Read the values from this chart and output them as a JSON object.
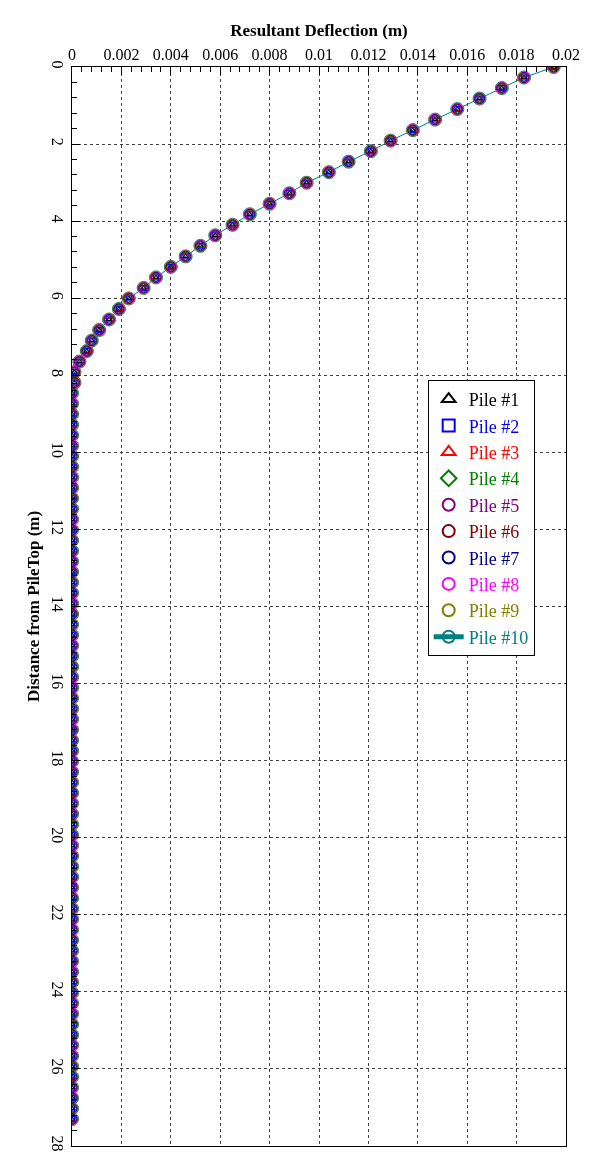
{
  "chart_data": {
    "type": "line",
    "orientation": "horizontal",
    "xlabel": "Resultant Deflection (m)",
    "ylabel": "Distance from PileTop (m)",
    "x": [
      0,
      0.273,
      0.546,
      0.819,
      1.092,
      1.365,
      1.638,
      1.911,
      2.184,
      2.457,
      2.73,
      3.003,
      3.276,
      3.549,
      3.822,
      4.095,
      4.368,
      4.641,
      4.914,
      5.187,
      5.46,
      5.733,
      6.006,
      6.279,
      6.552,
      6.825,
      7.098,
      7.371,
      7.644,
      7.917,
      8.19,
      8.463,
      8.736,
      9.009,
      9.282,
      9.555,
      9.828,
      10.101,
      10.374,
      10.647,
      10.92,
      11.193,
      11.466,
      11.739,
      12.012,
      12.285,
      12.558,
      12.831,
      13.104,
      13.377,
      13.65,
      13.923,
      14.196,
      14.469,
      14.742,
      15.015,
      15.288,
      15.561,
      15.834,
      16.107,
      16.38,
      16.653,
      16.926,
      17.199,
      17.472,
      17.745,
      18.018,
      18.291,
      18.564,
      18.837,
      19.11,
      19.383,
      19.656,
      19.929,
      20.202,
      20.475,
      20.748,
      21.021,
      21.294,
      21.567,
      21.84,
      22.113,
      22.386,
      22.659,
      22.932,
      23.205,
      23.478,
      23.751,
      24.024,
      24.297,
      24.57,
      24.843,
      25.116,
      25.389,
      25.662,
      25.935,
      26.208,
      26.481,
      26.754,
      27.027,
      27.3
    ],
    "xlim": [
      0,
      0.02
    ],
    "xticks": [
      0,
      0.002,
      0.004,
      0.006,
      0.008,
      0.01,
      0.012,
      0.014,
      0.016,
      0.018,
      0.02
    ],
    "ylim": [
      28,
      0
    ],
    "yticks": [
      0,
      2,
      4,
      6,
      8,
      10,
      12,
      14,
      16,
      18,
      20,
      22,
      24,
      26,
      28
    ],
    "grid": true,
    "legend": "right",
    "line_style": "solid",
    "series": [
      {
        "name": "Pile #1",
        "color": "#000000",
        "type": "scatter",
        "marker": "triangle",
        "values": [
          0.0195,
          0.0183,
          0.0174,
          0.0165,
          0.0156,
          0.0147,
          0.0138,
          0.0129,
          0.0121,
          0.0112,
          0.0104,
          0.0095,
          0.0088,
          0.008,
          0.0072,
          0.0065,
          0.0058,
          0.0052,
          0.0046,
          0.004,
          0.0034,
          0.0029,
          0.0023,
          0.0019,
          0.0015,
          0.0011,
          0.0008,
          0.0006,
          0.0003,
          0.0001,
          0.0001,
          0,
          0,
          0,
          0,
          0,
          0,
          0,
          0,
          0,
          0,
          0,
          0,
          0,
          0,
          0,
          0,
          0,
          0,
          0,
          0,
          0,
          0,
          0,
          0,
          0,
          0,
          0,
          0,
          0,
          0,
          0,
          0,
          0,
          0,
          0,
          0,
          0,
          0,
          0,
          0,
          0,
          0,
          0,
          0,
          0,
          0,
          0,
          0,
          0,
          0,
          0,
          0,
          0,
          0,
          0,
          0,
          0,
          0,
          0,
          0,
          0,
          0,
          0,
          0,
          0,
          0,
          0,
          0,
          0,
          0
        ]
      },
      {
        "name": "Pile #2",
        "color": "#0000ff",
        "type": "scatter",
        "marker": "square",
        "values": [
          0.0195,
          0.0183,
          0.0174,
          0.0165,
          0.0156,
          0.0147,
          0.0138,
          0.0129,
          0.0121,
          0.0112,
          0.0104,
          0.0095,
          0.0088,
          0.008,
          0.0072,
          0.0065,
          0.0058,
          0.0052,
          0.0046,
          0.004,
          0.0034,
          0.0029,
          0.0023,
          0.0019,
          0.0015,
          0.0011,
          0.0008,
          0.0006,
          0.0003,
          0.0001,
          0.0001,
          0,
          0,
          0,
          0,
          0,
          0,
          0,
          0,
          0,
          0,
          0,
          0,
          0,
          0,
          0,
          0,
          0,
          0,
          0,
          0,
          0,
          0,
          0,
          0,
          0,
          0,
          0,
          0,
          0,
          0,
          0,
          0,
          0,
          0,
          0,
          0,
          0,
          0,
          0,
          0,
          0,
          0,
          0,
          0,
          0,
          0,
          0,
          0,
          0,
          0,
          0,
          0,
          0,
          0,
          0,
          0,
          0,
          0,
          0,
          0,
          0,
          0,
          0,
          0,
          0,
          0,
          0,
          0,
          0,
          0
        ]
      },
      {
        "name": "Pile #3",
        "color": "#ff0000",
        "type": "scatter",
        "marker": "triangle",
        "values": [
          0.0195,
          0.0183,
          0.0174,
          0.0165,
          0.0156,
          0.0147,
          0.0138,
          0.0129,
          0.0121,
          0.0112,
          0.0104,
          0.0095,
          0.0088,
          0.008,
          0.0072,
          0.0065,
          0.0058,
          0.0052,
          0.0046,
          0.004,
          0.0034,
          0.0029,
          0.0023,
          0.0019,
          0.0015,
          0.0011,
          0.0008,
          0.0006,
          0.0003,
          0.0001,
          0.0001,
          0,
          0,
          0,
          0,
          0,
          0,
          0,
          0,
          0,
          0,
          0,
          0,
          0,
          0,
          0,
          0,
          0,
          0,
          0,
          0,
          0,
          0,
          0,
          0,
          0,
          0,
          0,
          0,
          0,
          0,
          0,
          0,
          0,
          0,
          0,
          0,
          0,
          0,
          0,
          0,
          0,
          0,
          0,
          0,
          0,
          0,
          0,
          0,
          0,
          0,
          0,
          0,
          0,
          0,
          0,
          0,
          0,
          0,
          0,
          0,
          0,
          0,
          0,
          0,
          0,
          0,
          0,
          0,
          0,
          0
        ]
      },
      {
        "name": "Pile #4",
        "color": "#008000",
        "type": "scatter",
        "marker": "diamond",
        "values": [
          0.0195,
          0.0183,
          0.0174,
          0.0165,
          0.0156,
          0.0147,
          0.0138,
          0.0129,
          0.0121,
          0.0112,
          0.0104,
          0.0095,
          0.0088,
          0.008,
          0.0072,
          0.0065,
          0.0058,
          0.0052,
          0.0046,
          0.004,
          0.0034,
          0.0029,
          0.0023,
          0.0019,
          0.0015,
          0.0011,
          0.0008,
          0.0006,
          0.0003,
          0.0001,
          0.0001,
          0,
          0,
          0,
          0,
          0,
          0,
          0,
          0,
          0,
          0,
          0,
          0,
          0,
          0,
          0,
          0,
          0,
          0,
          0,
          0,
          0,
          0,
          0,
          0,
          0,
          0,
          0,
          0,
          0,
          0,
          0,
          0,
          0,
          0,
          0,
          0,
          0,
          0,
          0,
          0,
          0,
          0,
          0,
          0,
          0,
          0,
          0,
          0,
          0,
          0,
          0,
          0,
          0,
          0,
          0,
          0,
          0,
          0,
          0,
          0,
          0,
          0,
          0,
          0,
          0,
          0,
          0,
          0,
          0,
          0
        ]
      },
      {
        "name": "Pile #5",
        "color": "#800080",
        "type": "scatter",
        "marker": "circle",
        "values": [
          0.0195,
          0.0183,
          0.0174,
          0.0165,
          0.0156,
          0.0147,
          0.0138,
          0.0129,
          0.0121,
          0.0112,
          0.0104,
          0.0095,
          0.0088,
          0.008,
          0.0072,
          0.0065,
          0.0058,
          0.0052,
          0.0046,
          0.004,
          0.0034,
          0.0029,
          0.0023,
          0.0019,
          0.0015,
          0.0011,
          0.0008,
          0.0006,
          0.0003,
          0.0001,
          0.0001,
          0,
          0,
          0,
          0,
          0,
          0,
          0,
          0,
          0,
          0,
          0,
          0,
          0,
          0,
          0,
          0,
          0,
          0,
          0,
          0,
          0,
          0,
          0,
          0,
          0,
          0,
          0,
          0,
          0,
          0,
          0,
          0,
          0,
          0,
          0,
          0,
          0,
          0,
          0,
          0,
          0,
          0,
          0,
          0,
          0,
          0,
          0,
          0,
          0,
          0,
          0,
          0,
          0,
          0,
          0,
          0,
          0,
          0,
          0,
          0,
          0,
          0,
          0,
          0,
          0,
          0,
          0,
          0,
          0,
          0
        ]
      },
      {
        "name": "Pile #6",
        "color": "#800000",
        "type": "scatter",
        "marker": "circle",
        "values": [
          0.0195,
          0.0183,
          0.0174,
          0.0165,
          0.0156,
          0.0147,
          0.0138,
          0.0129,
          0.0121,
          0.0112,
          0.0104,
          0.0095,
          0.0088,
          0.008,
          0.0072,
          0.0065,
          0.0058,
          0.0052,
          0.0046,
          0.004,
          0.0034,
          0.0029,
          0.0023,
          0.0019,
          0.0015,
          0.0011,
          0.0008,
          0.0006,
          0.0003,
          0.0001,
          0.0001,
          0,
          0,
          0,
          0,
          0,
          0,
          0,
          0,
          0,
          0,
          0,
          0,
          0,
          0,
          0,
          0,
          0,
          0,
          0,
          0,
          0,
          0,
          0,
          0,
          0,
          0,
          0,
          0,
          0,
          0,
          0,
          0,
          0,
          0,
          0,
          0,
          0,
          0,
          0,
          0,
          0,
          0,
          0,
          0,
          0,
          0,
          0,
          0,
          0,
          0,
          0,
          0,
          0,
          0,
          0,
          0,
          0,
          0,
          0,
          0,
          0,
          0,
          0,
          0,
          0,
          0,
          0,
          0,
          0,
          0
        ]
      },
      {
        "name": "Pile #7",
        "color": "#000080",
        "type": "scatter",
        "marker": "circle",
        "values": [
          0.0195,
          0.0183,
          0.0174,
          0.0165,
          0.0156,
          0.0147,
          0.0138,
          0.0129,
          0.0121,
          0.0112,
          0.0104,
          0.0095,
          0.0088,
          0.008,
          0.0072,
          0.0065,
          0.0058,
          0.0052,
          0.0046,
          0.004,
          0.0034,
          0.0029,
          0.0023,
          0.0019,
          0.0015,
          0.0011,
          0.0008,
          0.0006,
          0.0003,
          0.0001,
          0.0001,
          0,
          0,
          0,
          0,
          0,
          0,
          0,
          0,
          0,
          0,
          0,
          0,
          0,
          0,
          0,
          0,
          0,
          0,
          0,
          0,
          0,
          0,
          0,
          0,
          0,
          0,
          0,
          0,
          0,
          0,
          0,
          0,
          0,
          0,
          0,
          0,
          0,
          0,
          0,
          0,
          0,
          0,
          0,
          0,
          0,
          0,
          0,
          0,
          0,
          0,
          0,
          0,
          0,
          0,
          0,
          0,
          0,
          0,
          0,
          0,
          0,
          0,
          0,
          0,
          0,
          0,
          0,
          0,
          0,
          0
        ]
      },
      {
        "name": "Pile #8",
        "color": "#ff00ff",
        "type": "scatter",
        "marker": "circle",
        "values": [
          0.0195,
          0.0183,
          0.0174,
          0.0165,
          0.0156,
          0.0147,
          0.0138,
          0.0129,
          0.0121,
          0.0112,
          0.0104,
          0.0095,
          0.0088,
          0.008,
          0.0072,
          0.0065,
          0.0058,
          0.0052,
          0.0046,
          0.004,
          0.0034,
          0.0029,
          0.0023,
          0.0019,
          0.0015,
          0.0011,
          0.0008,
          0.0006,
          0.0003,
          0.0001,
          0.0001,
          0,
          0,
          0,
          0,
          0,
          0,
          0,
          0,
          0,
          0,
          0,
          0,
          0,
          0,
          0,
          0,
          0,
          0,
          0,
          0,
          0,
          0,
          0,
          0,
          0,
          0,
          0,
          0,
          0,
          0,
          0,
          0,
          0,
          0,
          0,
          0,
          0,
          0,
          0,
          0,
          0,
          0,
          0,
          0,
          0,
          0,
          0,
          0,
          0,
          0,
          0,
          0,
          0,
          0,
          0,
          0,
          0,
          0,
          0,
          0,
          0,
          0,
          0,
          0,
          0,
          0,
          0,
          0,
          0,
          0
        ]
      },
      {
        "name": "Pile #9",
        "color": "#808000",
        "type": "scatter",
        "marker": "circle",
        "values": [
          0.0195,
          0.0183,
          0.0174,
          0.0165,
          0.0156,
          0.0147,
          0.0138,
          0.0129,
          0.0121,
          0.0112,
          0.0104,
          0.0095,
          0.0088,
          0.008,
          0.0072,
          0.0065,
          0.0058,
          0.0052,
          0.0046,
          0.004,
          0.0034,
          0.0029,
          0.0023,
          0.0019,
          0.0015,
          0.0011,
          0.0008,
          0.0006,
          0.0003,
          0.0001,
          0.0001,
          0,
          0,
          0,
          0,
          0,
          0,
          0,
          0,
          0,
          0,
          0,
          0,
          0,
          0,
          0,
          0,
          0,
          0,
          0,
          0,
          0,
          0,
          0,
          0,
          0,
          0,
          0,
          0,
          0,
          0,
          0,
          0,
          0,
          0,
          0,
          0,
          0,
          0,
          0,
          0,
          0,
          0,
          0,
          0,
          0,
          0,
          0,
          0,
          0,
          0,
          0,
          0,
          0,
          0,
          0,
          0,
          0,
          0,
          0,
          0,
          0,
          0,
          0,
          0,
          0,
          0,
          0,
          0,
          0,
          0
        ]
      },
      {
        "name": "Pile #10",
        "color": "#008080",
        "marker": "circle",
        "values": [
          0.0195,
          0.0183,
          0.0174,
          0.0165,
          0.0156,
          0.0147,
          0.0138,
          0.0129,
          0.0121,
          0.0112,
          0.0104,
          0.0095,
          0.0088,
          0.008,
          0.0072,
          0.0065,
          0.0058,
          0.0052,
          0.0046,
          0.004,
          0.0034,
          0.0029,
          0.0023,
          0.0019,
          0.0015,
          0.0011,
          0.0008,
          0.0006,
          0.0003,
          0.0001,
          0.0001,
          0,
          0,
          0,
          0,
          0,
          0,
          0,
          0,
          0,
          0,
          0,
          0,
          0,
          0,
          0,
          0,
          0,
          0,
          0,
          0,
          0,
          0,
          0,
          0,
          0,
          0,
          0,
          0,
          0,
          0,
          0,
          0,
          0,
          0,
          0,
          0,
          0,
          0,
          0,
          0,
          0,
          0,
          0,
          0,
          0,
          0,
          0,
          0,
          0,
          0,
          0,
          0,
          0,
          0,
          0,
          0,
          0,
          0,
          0,
          0,
          0,
          0,
          0,
          0,
          0,
          0,
          0,
          0,
          0,
          0
        ]
      }
    ]
  }
}
